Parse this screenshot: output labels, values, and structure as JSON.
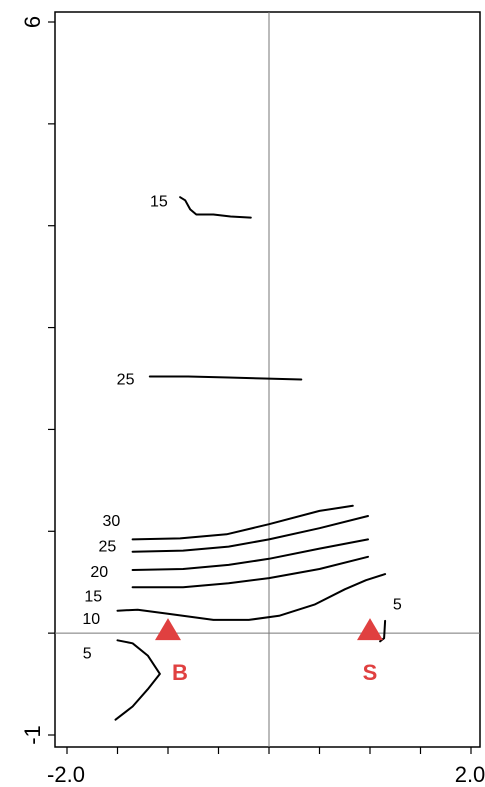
{
  "chart_data": {
    "type": "contour",
    "xlim": [
      -2.0,
      2.0
    ],
    "ylim": [
      -1,
      6
    ],
    "x_tick_labels": [
      {
        "value": -2.0,
        "text": "-2.0"
      },
      {
        "value": 2.0,
        "text": "2.0"
      }
    ],
    "y_tick_labels": [
      {
        "value": 6,
        "text": "6"
      },
      {
        "value": -1,
        "text": "-1"
      }
    ],
    "x_minor_ticks": [
      -2.0,
      -1.5,
      -1.0,
      -0.5,
      0.0,
      0.5,
      1.0,
      1.5,
      2.0
    ],
    "y_minor_ticks": [
      -1,
      0,
      1,
      2,
      3,
      4,
      5,
      6
    ],
    "reference_lines": {
      "x": 0.0,
      "y": 0.0
    },
    "grid": false,
    "contours": [
      {
        "label": "15",
        "label_pos": [
          -1.09,
          4.25
        ],
        "points": [
          [
            -0.88,
            4.28
          ],
          [
            -0.83,
            4.25
          ],
          [
            -0.78,
            4.16
          ],
          [
            -0.72,
            4.11
          ],
          [
            -0.55,
            4.11
          ],
          [
            -0.38,
            4.09
          ],
          [
            -0.18,
            4.08
          ]
        ]
      },
      {
        "label": "25",
        "label_pos": [
          -1.42,
          2.5
        ],
        "points": [
          [
            -1.18,
            2.52
          ],
          [
            -0.8,
            2.52
          ],
          [
            -0.4,
            2.51
          ],
          [
            -0.05,
            2.5
          ],
          [
            0.32,
            2.49
          ]
        ]
      },
      {
        "label": "30",
        "label_pos": [
          -1.56,
          1.11
        ],
        "points": [
          [
            -1.35,
            0.92
          ],
          [
            -0.88,
            0.93
          ],
          [
            -0.42,
            0.97
          ],
          [
            0.0,
            1.07
          ],
          [
            0.5,
            1.2
          ],
          [
            0.83,
            1.25
          ]
        ]
      },
      {
        "label": "25",
        "label_pos": [
          -1.6,
          0.86
        ],
        "points": [
          [
            -1.35,
            0.8
          ],
          [
            -0.85,
            0.81
          ],
          [
            -0.4,
            0.85
          ],
          [
            0.0,
            0.92
          ],
          [
            0.5,
            1.03
          ],
          [
            0.98,
            1.15
          ]
        ]
      },
      {
        "label": "20",
        "label_pos": [
          -1.68,
          0.61
        ],
        "points": [
          [
            -1.35,
            0.62
          ],
          [
            -0.85,
            0.63
          ],
          [
            -0.4,
            0.67
          ],
          [
            0.0,
            0.73
          ],
          [
            0.5,
            0.83
          ],
          [
            0.98,
            0.92
          ]
        ]
      },
      {
        "label": "15",
        "label_pos": [
          -1.74,
          0.37
        ],
        "points": [
          [
            -1.35,
            0.45
          ],
          [
            -0.85,
            0.45
          ],
          [
            -0.4,
            0.49
          ],
          [
            0.0,
            0.54
          ],
          [
            0.5,
            0.63
          ],
          [
            0.98,
            0.75
          ]
        ]
      },
      {
        "label": "10",
        "label_pos": [
          -1.76,
          0.15
        ],
        "points": [
          [
            -1.5,
            0.22
          ],
          [
            -1.3,
            0.23
          ],
          [
            -1.0,
            0.19
          ],
          [
            -0.55,
            0.13
          ],
          [
            -0.2,
            0.13
          ],
          [
            0.1,
            0.17
          ],
          [
            0.45,
            0.28
          ],
          [
            0.75,
            0.43
          ],
          [
            0.96,
            0.52
          ],
          [
            1.15,
            0.58
          ]
        ]
      },
      {
        "label": "5",
        "label_pos": [
          -1.8,
          -0.19
        ],
        "points": [
          [
            -1.5,
            -0.07
          ],
          [
            -1.35,
            -0.1
          ],
          [
            -1.2,
            -0.22
          ],
          [
            -1.08,
            -0.4
          ],
          [
            -1.2,
            -0.55
          ],
          [
            -1.35,
            -0.72
          ],
          [
            -1.52,
            -0.85
          ]
        ]
      },
      {
        "label": "5",
        "label_pos": [
          1.27,
          0.29
        ],
        "points": [
          [
            1.15,
            0.12
          ],
          [
            1.14,
            -0.05
          ],
          [
            1.1,
            -0.08
          ]
        ]
      }
    ],
    "markers": [
      {
        "label": "B",
        "x": -1.0,
        "y": 0.0,
        "color": "#e04040"
      },
      {
        "label": "S",
        "x": 1.0,
        "y": 0.0,
        "color": "#e04040"
      }
    ]
  }
}
